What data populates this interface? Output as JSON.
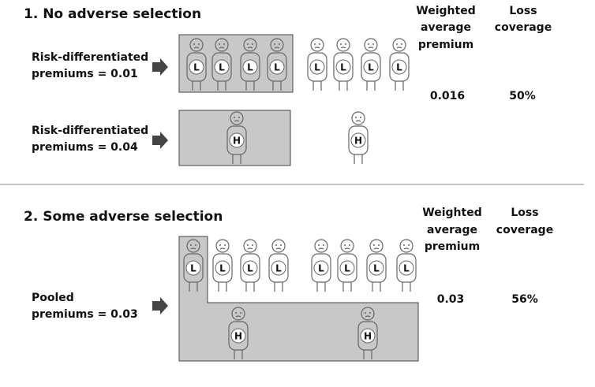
{
  "sections": [
    {
      "title": "1. No adverse selection",
      "header_premium": [
        "Weighted",
        "average",
        "premium"
      ],
      "header_coverage": [
        "Loss",
        "coverage"
      ],
      "rows": [
        {
          "label": [
            "Risk-differentiated",
            "premiums = 0.01"
          ],
          "people": [
            "L",
            "L",
            "L",
            "L",
            "L",
            "L",
            "L",
            "L"
          ]
        },
        {
          "label": [
            "Risk-differentiated",
            "premiums = 0.04"
          ],
          "people": [
            "H",
            "H"
          ]
        }
      ],
      "weighted_premium": "0.016",
      "loss_coverage": "50%"
    },
    {
      "title": "2. Some adverse selection",
      "header_premium": [
        "Weighted",
        "average",
        "premium"
      ],
      "header_coverage": [
        "Loss",
        "coverage"
      ],
      "rows": [
        {
          "label": [
            "Pooled",
            "premiums = 0.03"
          ],
          "people": [
            "L",
            "L",
            "L",
            "L",
            "L",
            "L",
            "L",
            "L",
            "H",
            "H"
          ]
        }
      ],
      "weighted_premium": "0.03",
      "loss_coverage": "56%"
    }
  ]
}
